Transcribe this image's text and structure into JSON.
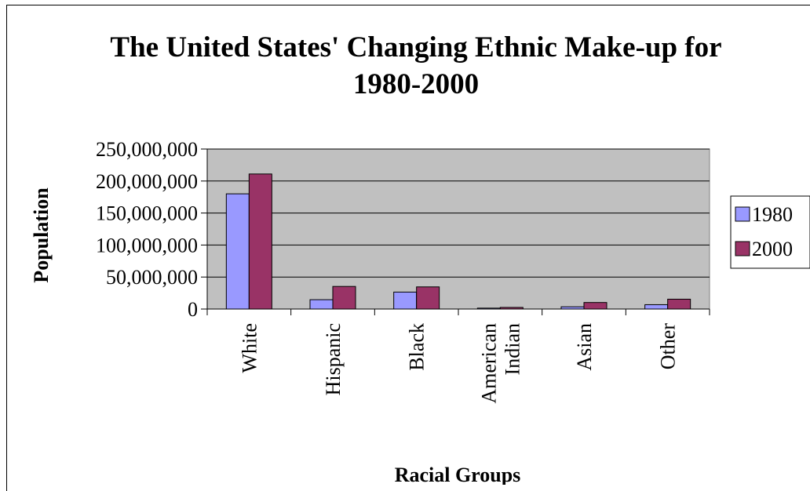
{
  "chart_data": {
    "type": "bar",
    "title_lines": [
      "The United States' Changing Ethnic Make-up for",
      "1980-2000"
    ],
    "xlabel": "Racial Groups",
    "ylabel": "Population",
    "categories": [
      [
        "White"
      ],
      [
        "Hispanic"
      ],
      [
        "Black"
      ],
      [
        "American",
        "Indian"
      ],
      [
        "Asian"
      ],
      [
        "Other"
      ]
    ],
    "series": [
      {
        "name": "1980",
        "color": "#9999FF",
        "values": [
          180000000,
          14600000,
          26500000,
          1400000,
          3500000,
          6800000
        ]
      },
      {
        "name": "2000",
        "color": "#993366",
        "values": [
          211000000,
          35300000,
          34600000,
          2500000,
          10200000,
          15400000
        ]
      }
    ],
    "yticks": [
      "0",
      "50,000,000",
      "100,000,000",
      "150,000,000",
      "200,000,000",
      "250,000,000"
    ],
    "ylim": [
      0,
      250000000
    ],
    "plot_background": "#C0C0C0",
    "grid": true,
    "legend_position": "right"
  }
}
